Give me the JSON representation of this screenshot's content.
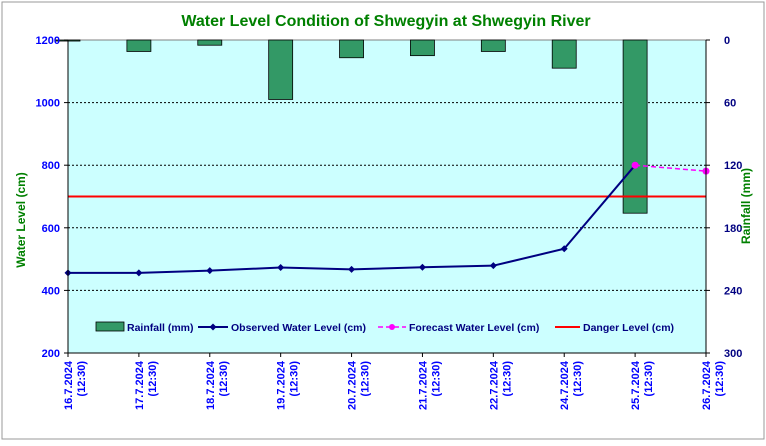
{
  "chart_data": {
    "type": "bar+line",
    "title": "Water Level Condition of Shwegyin at Shwegyin River",
    "categories": [
      [
        "16.7.2024",
        "(12:30)"
      ],
      [
        "17.7.2024",
        "(12:30)"
      ],
      [
        "18.7.2024",
        "(12:30)"
      ],
      [
        "19.7.2024",
        "(12:30)"
      ],
      [
        "20.7.2024",
        "(12:30)"
      ],
      [
        "21.7.2024",
        "(12:30)"
      ],
      [
        "22.7.2024",
        "(12:30)"
      ],
      [
        "24.7.2024",
        "(12:30)"
      ],
      [
        "25.7.2024",
        "(12:30)"
      ],
      [
        "26.7.2024",
        "(12:30)"
      ]
    ],
    "ylabel_left": "Water Level (cm)",
    "ylabel_right": "Rainfall (mm)",
    "ylim_left": [
      200,
      1200
    ],
    "yticks_left": [
      200,
      400,
      600,
      800,
      1000,
      1200
    ],
    "ylim_right_inverted": [
      0,
      300
    ],
    "yticks_right": [
      0,
      60,
      120,
      180,
      240,
      300
    ],
    "rainfall_mm": [
      1,
      11,
      5,
      57,
      17,
      15,
      11,
      27,
      166,
      null
    ],
    "observed_water_level_cm": [
      456,
      456,
      463,
      473,
      467,
      474,
      479,
      533,
      800,
      null
    ],
    "forecast_water_level_cm": [
      null,
      null,
      null,
      null,
      null,
      null,
      null,
      null,
      800,
      781
    ],
    "danger_level_cm": 700,
    "legend": [
      "Rainfall (mm)",
      "Observed Water Level (cm)",
      "Forecast Water Level (cm)",
      "Danger Level (cm)"
    ],
    "colors": {
      "plot_bg": "#ccffff",
      "rainfall": "#339966",
      "observed": "#000080",
      "forecast": "#ff00ff",
      "danger": "#ff0000",
      "title": "#008000",
      "left_axis": "#0000ff",
      "right_axis": "#000080",
      "axis_title": "#008000"
    }
  }
}
